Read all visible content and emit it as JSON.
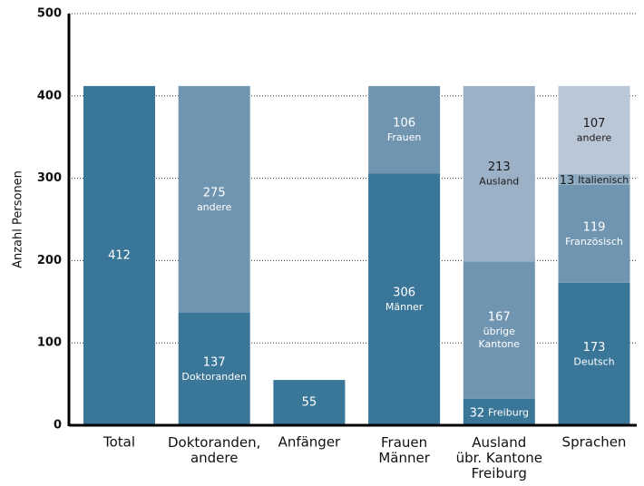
{
  "chart_data": {
    "type": "stacked_bar",
    "y_label": "Anzahl Personen",
    "ylim": [
      0,
      500
    ],
    "yticks": [
      0,
      100,
      200,
      300,
      400,
      500
    ],
    "grid": true,
    "categories": [
      "Total",
      "Doktoranden,\nandere",
      "Anfänger",
      "Frauen\nMänner",
      "Ausland\nübr. Kantone\nFreiburg",
      "Sprachen"
    ],
    "stacks": [
      [
        {
          "value": 412,
          "color": "#3a7698",
          "label_color": "#ffffff"
        }
      ],
      [
        {
          "value": 137,
          "name": "Doktoranden",
          "color": "#3a7698",
          "label_color": "#ffffff"
        },
        {
          "value": 275,
          "name": "andere",
          "color": "#7095b1",
          "label_color": "#ffffff"
        }
      ],
      [
        {
          "value": 55,
          "color": "#3a7698",
          "label_color": "#ffffff"
        }
      ],
      [
        {
          "value": 306,
          "name": "Männer",
          "color": "#3a7698",
          "label_color": "#ffffff"
        },
        {
          "value": 106,
          "name": "Frauen",
          "color": "#7095b1",
          "label_color": "#ffffff"
        }
      ],
      [
        {
          "value": 32,
          "name": "Freiburg",
          "color": "#3a7698",
          "label_color": "#ffffff"
        },
        {
          "value": 167,
          "name": "übrige\nKantone",
          "color": "#7095b1",
          "label_color": "#ffffff"
        },
        {
          "value": 213,
          "name": "Ausland",
          "color": "#9cb1c6",
          "label_color": "#1a1a1a"
        }
      ],
      [
        {
          "value": 173,
          "name": "Deutsch",
          "color": "#3a7698",
          "label_color": "#ffffff"
        },
        {
          "value": 119,
          "name": "Französisch",
          "color": "#7095b1",
          "label_color": "#ffffff"
        },
        {
          "value": 13,
          "name": "Italienisch",
          "color": "#8eaac0",
          "label_color": "#1a1a1a"
        },
        {
          "value": 107,
          "name": "andere",
          "color": "#b9c7d6",
          "label_color": "#1a1a1a"
        }
      ]
    ]
  }
}
